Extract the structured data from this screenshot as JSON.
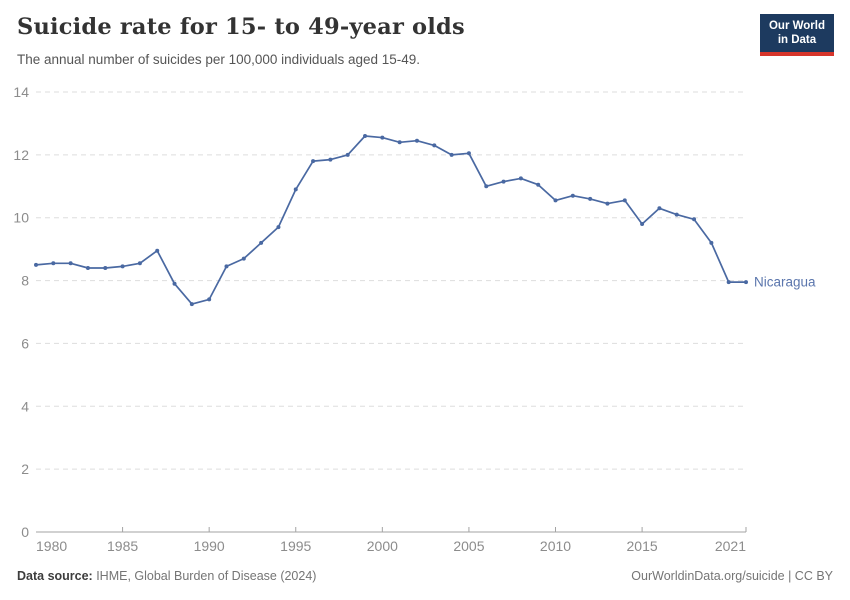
{
  "header": {
    "title": "Suicide rate for 15- to 49-year olds",
    "subtitle": "The annual number of suicides per 100,000 individuals aged 15-49."
  },
  "logo": {
    "line1": "Our World",
    "line2": "in Data",
    "bg_color": "#1d3a5f",
    "stripe_color": "#d7352b"
  },
  "footer": {
    "source_label": "Data source:",
    "source_text": " IHME, Global Burden of Disease (2024)",
    "right_text": "OurWorldinData.org/suicide | CC BY"
  },
  "chart_data": {
    "type": "line",
    "title": "Suicide rate for 15- to 49-year olds",
    "xlabel": "",
    "ylabel": "",
    "xlim": [
      1980,
      2021
    ],
    "ylim": [
      0,
      14
    ],
    "grid": "horizontal-dashed",
    "x_ticks": [
      1980,
      1985,
      1990,
      1995,
      2000,
      2005,
      2010,
      2015,
      2021
    ],
    "y_ticks": [
      0,
      2,
      4,
      6,
      8,
      10,
      12,
      14
    ],
    "line_color": "#4a69a2",
    "label_color": "#5b76ad",
    "grid_color": "#dddddd",
    "axis_color": "#a3a3a3",
    "tick_label_color": "#8c8c8c",
    "series_label": "Nicaragua",
    "series": [
      {
        "name": "Nicaragua",
        "x": [
          1980,
          1981,
          1982,
          1983,
          1984,
          1985,
          1986,
          1987,
          1988,
          1989,
          1990,
          1991,
          1992,
          1993,
          1994,
          1995,
          1996,
          1997,
          1998,
          1999,
          2000,
          2001,
          2002,
          2003,
          2004,
          2005,
          2006,
          2007,
          2008,
          2009,
          2010,
          2011,
          2012,
          2013,
          2014,
          2015,
          2016,
          2017,
          2018,
          2019,
          2020,
          2021
        ],
        "values": [
          8.5,
          8.55,
          8.55,
          8.4,
          8.4,
          8.45,
          8.55,
          8.95,
          7.9,
          7.25,
          7.4,
          8.45,
          8.7,
          9.2,
          9.7,
          10.9,
          11.8,
          11.85,
          12.0,
          12.6,
          12.55,
          12.4,
          12.45,
          12.3,
          12.0,
          12.05,
          11.0,
          11.15,
          11.25,
          11.05,
          10.55,
          10.7,
          10.6,
          10.45,
          10.55,
          9.8,
          10.3,
          10.1,
          9.95,
          9.2,
          7.95,
          7.95
        ]
      }
    ]
  }
}
